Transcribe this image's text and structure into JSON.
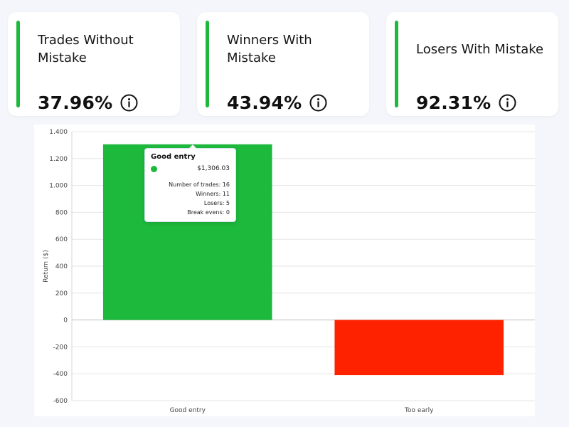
{
  "cards": [
    {
      "title": "Trades Without Mistake",
      "value": "37.96%",
      "icon": "info-icon"
    },
    {
      "title": "Winners With Mistake",
      "value": "43.94%",
      "icon": "info-icon"
    },
    {
      "title": "Losers With Mistake",
      "value": "92.31%",
      "icon": "info-icon"
    }
  ],
  "colors": {
    "accent": "#1db93d",
    "positive": "#1db93d",
    "negative": "#ff2200",
    "grid": "#e6e6e6"
  },
  "chart_data": {
    "type": "bar",
    "categories": [
      "Good entry",
      "Too early"
    ],
    "values": [
      1306.03,
      -410
    ],
    "ylabel": "Return ($)",
    "ylim": [
      -600,
      1400
    ],
    "yticks": [
      -600,
      -400,
      -200,
      0,
      200,
      400,
      600,
      800,
      1000,
      1200,
      1400
    ],
    "ytick_labels": [
      "-600",
      "-400",
      "-200",
      "0",
      "200",
      "400",
      "600",
      "800",
      "1.000",
      "1.200",
      "1.400"
    ],
    "grid": true
  },
  "tooltip": {
    "title": "Good entry",
    "amount": "$1,306.03",
    "stats": [
      "Number of trades: 16",
      "Winners: 11",
      "Losers: 5",
      "Break evens: 0"
    ]
  }
}
